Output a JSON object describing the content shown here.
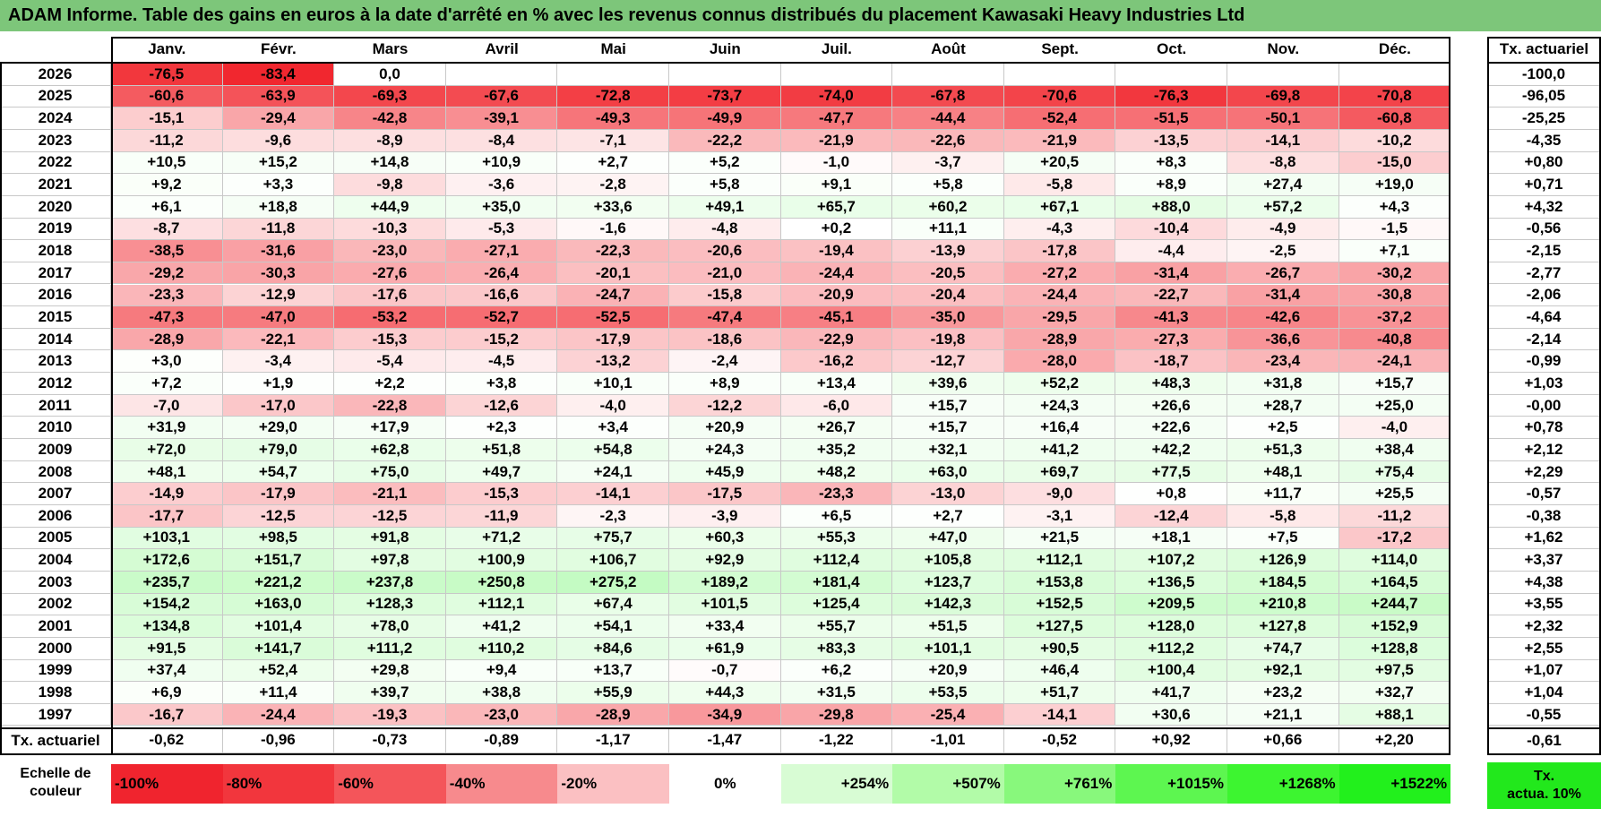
{
  "title": "ADAM Informe. Table des gains en euros à la date d'arrêté en % avec les revenus connus distribués du placement Kawasaki Heavy Industries Ltd",
  "chart_data": {
    "type": "table",
    "columns": [
      "Janv.",
      "Févr.",
      "Mars",
      "Avril",
      "Mai",
      "Juin",
      "Juil.",
      "Août",
      "Sept.",
      "Oct.",
      "Nov.",
      "Déc."
    ],
    "rate_column_label": "Tx. actuariel",
    "rows": [
      {
        "year": "2026",
        "values": [
          "-76,5",
          "-83,4",
          "0,0",
          "",
          "",
          "",
          "",
          "",
          "",
          "",
          "",
          ""
        ],
        "rate": "-100,0"
      },
      {
        "year": "2025",
        "values": [
          "-60,6",
          "-63,9",
          "-69,3",
          "-67,6",
          "-72,8",
          "-73,7",
          "-74,0",
          "-67,8",
          "-70,6",
          "-76,3",
          "-69,8",
          "-70,8"
        ],
        "rate": "-96,05"
      },
      {
        "year": "2024",
        "values": [
          "-15,1",
          "-29,4",
          "-42,8",
          "-39,1",
          "-49,3",
          "-49,9",
          "-47,7",
          "-44,4",
          "-52,4",
          "-51,5",
          "-50,1",
          "-60,8"
        ],
        "rate": "-25,25"
      },
      {
        "year": "2023",
        "values": [
          "-11,2",
          "-9,6",
          "-8,9",
          "-8,4",
          "-7,1",
          "-22,2",
          "-21,9",
          "-22,6",
          "-21,9",
          "-13,5",
          "-14,1",
          "-10,2"
        ],
        "rate": "-4,35"
      },
      {
        "year": "2022",
        "values": [
          "+10,5",
          "+15,2",
          "+14,8",
          "+10,9",
          "+2,7",
          "+5,2",
          "-1,0",
          "-3,7",
          "+20,5",
          "+8,3",
          "-8,8",
          "-15,0"
        ],
        "rate": "+0,80"
      },
      {
        "year": "2021",
        "values": [
          "+9,2",
          "+3,3",
          "-9,8",
          "-3,6",
          "-2,8",
          "+5,8",
          "+9,1",
          "+5,8",
          "-5,8",
          "+8,9",
          "+27,4",
          "+19,0"
        ],
        "rate": "+0,71"
      },
      {
        "year": "2020",
        "values": [
          "+6,1",
          "+18,8",
          "+44,9",
          "+35,0",
          "+33,6",
          "+49,1",
          "+65,7",
          "+60,2",
          "+67,1",
          "+88,0",
          "+57,2",
          "+4,3"
        ],
        "rate": "+4,32"
      },
      {
        "year": "2019",
        "values": [
          "-8,7",
          "-11,8",
          "-10,3",
          "-5,3",
          "-1,6",
          "-4,8",
          "+0,2",
          "+11,1",
          "-4,3",
          "-10,4",
          "-4,9",
          "-1,5"
        ],
        "rate": "-0,56"
      },
      {
        "year": "2018",
        "values": [
          "-38,5",
          "-31,6",
          "-23,0",
          "-27,1",
          "-22,3",
          "-20,6",
          "-19,4",
          "-13,9",
          "-17,8",
          "-4,4",
          "-2,5",
          "+7,1"
        ],
        "rate": "-2,15"
      },
      {
        "year": "2017",
        "values": [
          "-29,2",
          "-30,3",
          "-27,6",
          "-26,4",
          "-20,1",
          "-21,0",
          "-24,4",
          "-20,5",
          "-27,2",
          "-31,4",
          "-26,7",
          "-30,2"
        ],
        "rate": "-2,77"
      },
      {
        "year": "2016",
        "values": [
          "-23,3",
          "-12,9",
          "-17,6",
          "-16,6",
          "-24,7",
          "-15,8",
          "-20,9",
          "-20,4",
          "-24,4",
          "-22,7",
          "-31,4",
          "-30,8"
        ],
        "rate": "-2,06"
      },
      {
        "year": "2015",
        "values": [
          "-47,3",
          "-47,0",
          "-53,2",
          "-52,7",
          "-52,5",
          "-47,4",
          "-45,1",
          "-35,0",
          "-29,5",
          "-41,3",
          "-42,6",
          "-37,2"
        ],
        "rate": "-4,64"
      },
      {
        "year": "2014",
        "values": [
          "-28,9",
          "-22,1",
          "-15,3",
          "-15,2",
          "-17,9",
          "-18,6",
          "-22,9",
          "-19,8",
          "-28,9",
          "-27,3",
          "-36,6",
          "-40,8"
        ],
        "rate": "-2,14"
      },
      {
        "year": "2013",
        "values": [
          "+3,0",
          "-3,4",
          "-5,4",
          "-4,5",
          "-13,2",
          "-2,4",
          "-16,2",
          "-12,7",
          "-28,0",
          "-18,7",
          "-23,4",
          "-24,1"
        ],
        "rate": "-0,99"
      },
      {
        "year": "2012",
        "values": [
          "+7,2",
          "+1,9",
          "+2,2",
          "+3,8",
          "+10,1",
          "+8,9",
          "+13,4",
          "+39,6",
          "+52,2",
          "+48,3",
          "+31,8",
          "+15,7"
        ],
        "rate": "+1,03"
      },
      {
        "year": "2011",
        "values": [
          "-7,0",
          "-17,0",
          "-22,8",
          "-12,6",
          "-4,0",
          "-12,2",
          "-6,0",
          "+15,7",
          "+24,3",
          "+26,6",
          "+28,7",
          "+25,0"
        ],
        "rate": "-0,00"
      },
      {
        "year": "2010",
        "values": [
          "+31,9",
          "+29,0",
          "+17,9",
          "+2,3",
          "+3,4",
          "+20,9",
          "+26,7",
          "+15,7",
          "+16,4",
          "+22,6",
          "+2,5",
          "-4,0"
        ],
        "rate": "+0,78"
      },
      {
        "year": "2009",
        "values": [
          "+72,0",
          "+79,0",
          "+62,8",
          "+51,8",
          "+54,8",
          "+24,3",
          "+35,2",
          "+32,1",
          "+41,2",
          "+42,2",
          "+51,3",
          "+38,4"
        ],
        "rate": "+2,12"
      },
      {
        "year": "2008",
        "values": [
          "+48,1",
          "+54,7",
          "+75,0",
          "+49,7",
          "+24,1",
          "+45,9",
          "+48,2",
          "+63,0",
          "+69,7",
          "+77,5",
          "+48,1",
          "+75,4"
        ],
        "rate": "+2,29"
      },
      {
        "year": "2007",
        "values": [
          "-14,9",
          "-17,9",
          "-21,1",
          "-15,3",
          "-14,1",
          "-17,5",
          "-23,3",
          "-13,0",
          "-9,0",
          "+0,8",
          "+11,7",
          "+25,5"
        ],
        "rate": "-0,57"
      },
      {
        "year": "2006",
        "values": [
          "-17,7",
          "-12,5",
          "-12,5",
          "-11,9",
          "-2,3",
          "-3,9",
          "+6,5",
          "+2,7",
          "-3,1",
          "-12,4",
          "-5,8",
          "-11,2"
        ],
        "rate": "-0,38"
      },
      {
        "year": "2005",
        "values": [
          "+103,1",
          "+98,5",
          "+91,8",
          "+71,2",
          "+75,7",
          "+60,3",
          "+55,3",
          "+47,0",
          "+21,5",
          "+18,1",
          "+7,5",
          "-17,2"
        ],
        "rate": "+1,62"
      },
      {
        "year": "2004",
        "values": [
          "+172,6",
          "+151,7",
          "+97,8",
          "+100,9",
          "+106,7",
          "+92,9",
          "+112,4",
          "+105,8",
          "+112,1",
          "+107,2",
          "+126,9",
          "+114,0"
        ],
        "rate": "+3,37"
      },
      {
        "year": "2003",
        "values": [
          "+235,7",
          "+221,2",
          "+237,8",
          "+250,8",
          "+275,2",
          "+189,2",
          "+181,4",
          "+123,7",
          "+153,8",
          "+136,5",
          "+184,5",
          "+164,5"
        ],
        "rate": "+4,38"
      },
      {
        "year": "2002",
        "values": [
          "+154,2",
          "+163,0",
          "+128,3",
          "+112,1",
          "+67,4",
          "+101,5",
          "+125,4",
          "+142,3",
          "+152,5",
          "+209,5",
          "+210,8",
          "+244,7"
        ],
        "rate": "+3,55"
      },
      {
        "year": "2001",
        "values": [
          "+134,8",
          "+101,4",
          "+78,0",
          "+41,2",
          "+54,1",
          "+33,4",
          "+55,7",
          "+51,5",
          "+127,5",
          "+128,0",
          "+127,8",
          "+152,9"
        ],
        "rate": "+2,32"
      },
      {
        "year": "2000",
        "values": [
          "+91,5",
          "+141,7",
          "+111,2",
          "+110,2",
          "+84,6",
          "+61,9",
          "+83,3",
          "+101,1",
          "+90,5",
          "+112,2",
          "+74,7",
          "+128,8"
        ],
        "rate": "+2,55"
      },
      {
        "year": "1999",
        "values": [
          "+37,4",
          "+52,4",
          "+29,8",
          "+9,4",
          "+13,7",
          "-0,7",
          "+6,2",
          "+20,9",
          "+46,4",
          "+100,4",
          "+92,1",
          "+97,5"
        ],
        "rate": "+1,07"
      },
      {
        "year": "1998",
        "values": [
          "+6,9",
          "+11,4",
          "+39,7",
          "+38,8",
          "+55,9",
          "+44,3",
          "+31,5",
          "+53,5",
          "+51,7",
          "+41,7",
          "+23,2",
          "+32,7"
        ],
        "rate": "+1,04"
      },
      {
        "year": "1997",
        "values": [
          "-16,7",
          "-24,4",
          "-19,3",
          "-23,0",
          "-28,9",
          "-34,9",
          "-29,8",
          "-25,4",
          "-14,1",
          "+30,6",
          "+21,1",
          "+88,1"
        ],
        "rate": "-0,55"
      }
    ],
    "footer": {
      "label": "Tx. actuariel",
      "values": [
        "-0,62",
        "-0,96",
        "-0,73",
        "-0,89",
        "-1,17",
        "-1,47",
        "-1,22",
        "-1,01",
        "-0,52",
        "+0,92",
        "+0,66",
        "+2,20"
      ],
      "rate": "-0,61"
    },
    "color_scale": {
      "label_line1": "Echelle de",
      "label_line2": "couleur",
      "entries": [
        {
          "text": "-100%",
          "value": -100,
          "color": "#f0242e"
        },
        {
          "text": "-80%",
          "value": -80,
          "color": "#f2363d"
        },
        {
          "text": "-60%",
          "value": -60,
          "color": "#f4555a"
        },
        {
          "text": "-40%",
          "value": -40,
          "color": "#f78a8d"
        },
        {
          "text": "-20%",
          "value": -20,
          "color": "#fbc0c2"
        },
        {
          "text": "0%",
          "value": 0,
          "color": "#ffffff"
        },
        {
          "text": "+254%",
          "value": 254,
          "color": "#d8fcd4"
        },
        {
          "text": "+507%",
          "value": 507,
          "color": "#b2fba8"
        },
        {
          "text": "+761%",
          "value": 761,
          "color": "#88f87c"
        },
        {
          "text": "+1015%",
          "value": 1015,
          "color": "#5df650"
        },
        {
          "text": "+1268%",
          "value": 1268,
          "color": "#3df530"
        },
        {
          "text": "+1522%",
          "value": 1522,
          "color": "#22f01c"
        }
      ],
      "rate_label_line1": "Tx.",
      "rate_label_line2": "actua. 10%",
      "rate_color": "#22e81c"
    },
    "colors": {
      "title_bg": "#7dc67a",
      "negative_max": "#f0161e",
      "positive_max": "#22f01c",
      "neutral": "#ffffff"
    }
  }
}
